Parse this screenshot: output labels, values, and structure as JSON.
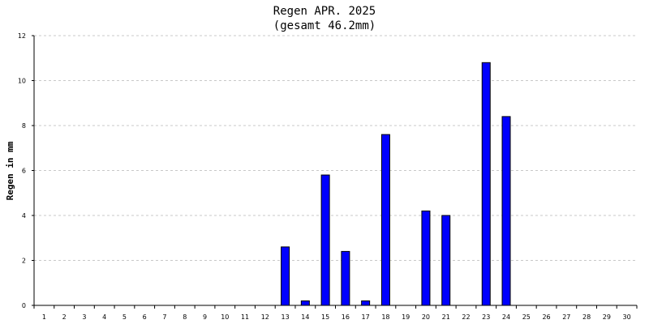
{
  "chart_data": {
    "type": "bar",
    "title": "Regen APR. 2025",
    "subtitle": "(gesamt 46.2mm)",
    "xlabel": "",
    "ylabel": "Regen in mm",
    "ylim": [
      0,
      12
    ],
    "yticks": [
      "0",
      "2",
      "4",
      "6",
      "8",
      "10",
      "12"
    ],
    "grid": true,
    "categories": [
      "1",
      "2",
      "3",
      "4",
      "5",
      "6",
      "7",
      "8",
      "9",
      "10",
      "11",
      "12",
      "13",
      "14",
      "15",
      "16",
      "17",
      "18",
      "19",
      "20",
      "21",
      "22",
      "23",
      "24",
      "25",
      "26",
      "27",
      "28",
      "29",
      "30"
    ],
    "values": [
      0,
      0,
      0,
      0,
      0,
      0,
      0,
      0,
      0,
      0,
      0,
      0,
      2.6,
      0.2,
      5.8,
      2.4,
      0.2,
      7.6,
      0,
      4.2,
      4.0,
      0,
      10.8,
      8.4,
      0,
      0,
      0,
      0,
      0,
      0
    ],
    "colors": {
      "bar": "#0000ff",
      "grid": "#c8c8c8"
    }
  }
}
